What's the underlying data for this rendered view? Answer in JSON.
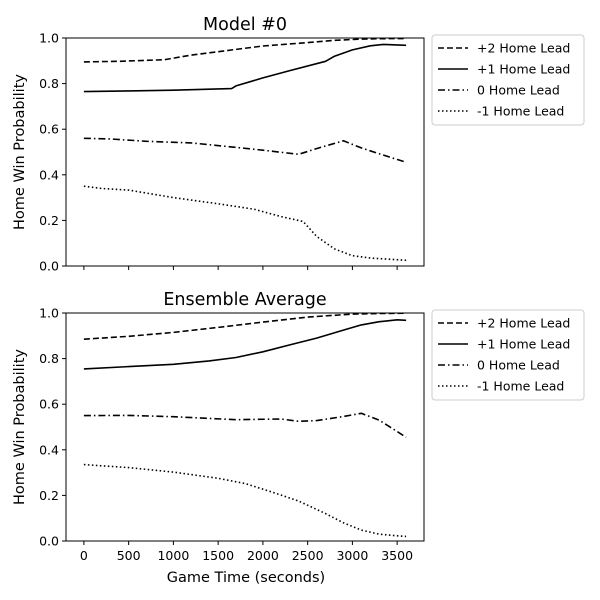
{
  "figure": {
    "xlabel": "Game Time (seconds)"
  },
  "chart_data": [
    {
      "type": "line",
      "title": "Model #0",
      "xlabel": "",
      "ylabel": "Home Win Probability",
      "xlim": [
        -200,
        3800
      ],
      "ylim": [
        0,
        1.0
      ],
      "xticks": [
        0,
        500,
        1000,
        1500,
        2000,
        2500,
        3000,
        3500
      ],
      "yticks": [
        0.0,
        0.2,
        0.4,
        0.6,
        0.8,
        1.0
      ],
      "ytick_labels": [
        "0.0",
        "0.2",
        "0.4",
        "0.6",
        "0.8",
        "1.0"
      ],
      "xtick_labels_shown": false,
      "legend_position": "outside-right-top",
      "series": [
        {
          "name": "+2 Home Lead",
          "style": "dashed",
          "x": [
            0,
            400,
            900,
            1200,
            1700,
            2000,
            2500,
            2800,
            3100,
            3300,
            3600
          ],
          "y": [
            0.895,
            0.898,
            0.905,
            0.925,
            0.95,
            0.965,
            0.98,
            0.99,
            0.995,
            0.997,
            0.998
          ]
        },
        {
          "name": "+1 Home Lead",
          "style": "solid",
          "x": [
            0,
            500,
            1000,
            1650,
            1700,
            2000,
            2300,
            2700,
            2800,
            3000,
            3200,
            3350,
            3600
          ],
          "y": [
            0.765,
            0.768,
            0.771,
            0.778,
            0.79,
            0.825,
            0.857,
            0.898,
            0.92,
            0.948,
            0.966,
            0.972,
            0.968
          ]
        },
        {
          "name": "0 Home Lead",
          "style": "dashdot",
          "x": [
            0,
            300,
            700,
            1200,
            1700,
            2000,
            2400,
            2600,
            2900,
            3100,
            3300,
            3600
          ],
          "y": [
            0.56,
            0.557,
            0.547,
            0.54,
            0.52,
            0.508,
            0.49,
            0.515,
            0.549,
            0.518,
            0.492,
            0.455
          ]
        },
        {
          "name": "-1 Home Lead",
          "style": "dotted",
          "x": [
            0,
            200,
            500,
            1000,
            1500,
            1900,
            2200,
            2450,
            2600,
            2800,
            3000,
            3200,
            3400,
            3600
          ],
          "y": [
            0.35,
            0.34,
            0.333,
            0.3,
            0.273,
            0.249,
            0.217,
            0.195,
            0.13,
            0.075,
            0.045,
            0.035,
            0.03,
            0.025
          ]
        }
      ]
    },
    {
      "type": "line",
      "title": "Ensemble Average",
      "xlabel": "Game Time (seconds)",
      "ylabel": "Home Win Probability",
      "xlim": [
        -200,
        3800
      ],
      "ylim": [
        0,
        1.0
      ],
      "xticks": [
        0,
        500,
        1000,
        1500,
        2000,
        2500,
        3000,
        3500
      ],
      "xtick_labels": [
        "0",
        "500",
        "1000",
        "1500",
        "2000",
        "2500",
        "3000",
        "3500"
      ],
      "yticks": [
        0.0,
        0.2,
        0.4,
        0.6,
        0.8,
        1.0
      ],
      "ytick_labels": [
        "0.0",
        "0.2",
        "0.4",
        "0.6",
        "0.8",
        "1.0"
      ],
      "xtick_labels_shown": true,
      "legend_position": "outside-right-top",
      "series": [
        {
          "name": "+2 Home Lead",
          "style": "dashed",
          "x": [
            0,
            500,
            1000,
            1500,
            2000,
            2500,
            3000,
            3300,
            3600
          ],
          "y": [
            0.885,
            0.898,
            0.915,
            0.937,
            0.96,
            0.982,
            0.995,
            0.998,
            0.999
          ]
        },
        {
          "name": "+1 Home Lead",
          "style": "solid",
          "x": [
            0,
            500,
            1000,
            1400,
            1700,
            2000,
            2300,
            2600,
            2900,
            3100,
            3300,
            3500,
            3600
          ],
          "y": [
            0.755,
            0.765,
            0.775,
            0.79,
            0.805,
            0.83,
            0.86,
            0.89,
            0.925,
            0.948,
            0.962,
            0.97,
            0.968
          ]
        },
        {
          "name": "0 Home Lead",
          "style": "dashdot",
          "x": [
            0,
            500,
            1000,
            1700,
            2200,
            2400,
            2600,
            2900,
            3100,
            3300,
            3500,
            3600
          ],
          "y": [
            0.55,
            0.551,
            0.545,
            0.532,
            0.535,
            0.525,
            0.528,
            0.546,
            0.56,
            0.53,
            0.48,
            0.455
          ]
        },
        {
          "name": "-1 Home Lead",
          "style": "dotted",
          "x": [
            0,
            500,
            1000,
            1500,
            1800,
            2100,
            2400,
            2700,
            2900,
            3100,
            3300,
            3500,
            3600
          ],
          "y": [
            0.335,
            0.322,
            0.302,
            0.275,
            0.252,
            0.215,
            0.175,
            0.12,
            0.08,
            0.048,
            0.03,
            0.023,
            0.02
          ]
        }
      ]
    }
  ]
}
